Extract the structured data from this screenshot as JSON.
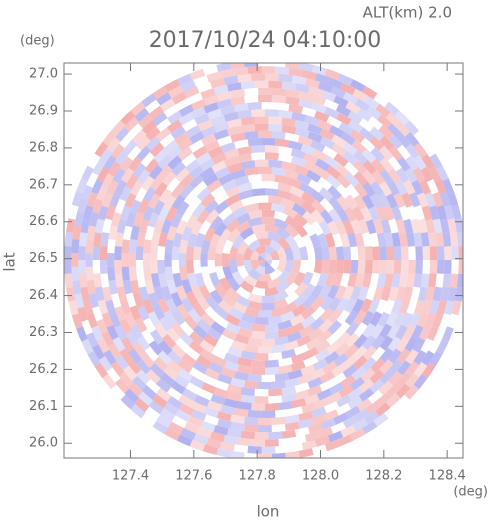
{
  "chart_data": {
    "type": "ppi",
    "title": "2017/10/24 04:10:00",
    "altitude_label": "ALT(km) 2.0",
    "x_label": "lon",
    "x_unit": "(deg)",
    "y_label": "lat",
    "y_unit": "(deg)",
    "xlim": [
      127.19,
      128.45
    ],
    "xticks": [
      127.4,
      127.6,
      127.8,
      {
        "value": 128,
        "label": "128.0"
      },
      128.2,
      128.4
    ],
    "ylim": [
      25.96,
      27.03
    ],
    "yticks": [
      {
        "value": 26,
        "label": "26.0"
      },
      26.1,
      26.2,
      26.3,
      26.4,
      26.5,
      26.6,
      26.7,
      26.8,
      26.9,
      {
        "value": 27,
        "label": "27.0"
      }
    ],
    "colors": [
      "#f4a6a6",
      "#a8a8ef"
    ]
  }
}
